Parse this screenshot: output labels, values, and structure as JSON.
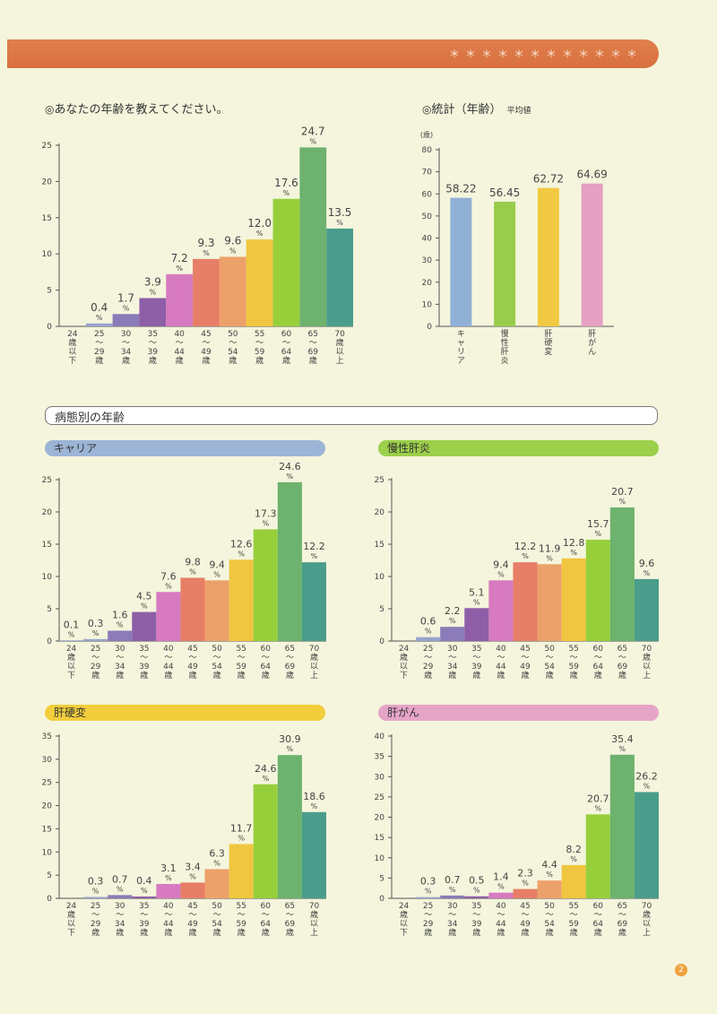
{
  "banner": {
    "stars": "＊＊＊＊＊＊＊＊＊＊＊＊"
  },
  "age_question": {
    "mark": "◎",
    "title": "あなたの年齢を教えてください。"
  },
  "stats": {
    "mark": "◎",
    "title": "統計（年齢）",
    "subtitle": "平均値"
  },
  "disease_section": {
    "title": "病態別の年齢"
  },
  "pills": {
    "carrier": "キャリア",
    "chronic": "慢性肝炎",
    "cirrhosis": "肝硬変",
    "cancer": "肝がん"
  },
  "page_number": "2",
  "colors": {
    "banner": "#dc7643",
    "pill_carrier": "#9cb4d6",
    "pill_chronic": "#9ccf4a",
    "pill_cirrhosis": "#f2ce3c",
    "pill_cancer": "#e6a5c7",
    "bars": [
      "#9aa3cf",
      "#9aa3cf",
      "#8b7bb8",
      "#8e5ea7",
      "#d77ac0",
      "#e77e67",
      "#eda16a",
      "#f0c640",
      "#97cf3b",
      "#6db26e",
      "#4a9d8b"
    ],
    "stats_bars": [
      "#91b0d6",
      "#9acc4c",
      "#f1c943",
      "#e5a0c3"
    ]
  },
  "chart_data": [
    {
      "id": "all",
      "type": "bar",
      "categories": [
        [
          "24",
          "歳",
          "以",
          "下"
        ],
        [
          "25",
          "〜",
          "29",
          "歳"
        ],
        [
          "30",
          "〜",
          "34",
          "歳"
        ],
        [
          "35",
          "〜",
          "39",
          "歳"
        ],
        [
          "40",
          "〜",
          "44",
          "歳"
        ],
        [
          "45",
          "〜",
          "49",
          "歳"
        ],
        [
          "50",
          "〜",
          "54",
          "歳"
        ],
        [
          "55",
          "〜",
          "59",
          "歳"
        ],
        [
          "60",
          "〜",
          "64",
          "歳"
        ],
        [
          "65",
          "〜",
          "69",
          "歳"
        ],
        [
          "70",
          "歳",
          "以",
          "上"
        ]
      ],
      "values": [
        null,
        0.4,
        1.7,
        3.9,
        7.2,
        9.3,
        9.6,
        12.0,
        17.6,
        24.7,
        13.5
      ],
      "labels": [
        "",
        "0.4",
        "1.7",
        "3.9",
        "7.2",
        "9.3",
        "9.6",
        "12.0",
        "17.6",
        "24.7",
        "13.5"
      ],
      "unit": "%",
      "ylim": [
        0,
        25
      ],
      "yticks": [
        0,
        5,
        10,
        15,
        20,
        25
      ]
    },
    {
      "id": "stats",
      "type": "bar",
      "categories": [
        [
          "キ",
          "ャ",
          "リ",
          "ア"
        ],
        [
          "慢",
          "性",
          "肝",
          "炎"
        ],
        [
          "肝",
          "硬",
          "変"
        ],
        [
          "肝",
          "が",
          "ん"
        ]
      ],
      "values": [
        58.22,
        56.45,
        62.72,
        64.69
      ],
      "labels": [
        "58.22",
        "56.45",
        "62.72",
        "64.69"
      ],
      "ylabel": "(歳)",
      "ylim": [
        0,
        80
      ],
      "yticks": [
        0,
        10,
        20,
        30,
        40,
        50,
        60,
        70,
        80
      ]
    },
    {
      "id": "carrier",
      "type": "bar",
      "categories": [
        [
          "24",
          "歳",
          "以",
          "下"
        ],
        [
          "25",
          "〜",
          "29",
          "歳"
        ],
        [
          "30",
          "〜",
          "34",
          "歳"
        ],
        [
          "35",
          "〜",
          "39",
          "歳"
        ],
        [
          "40",
          "〜",
          "44",
          "歳"
        ],
        [
          "45",
          "〜",
          "49",
          "歳"
        ],
        [
          "50",
          "〜",
          "54",
          "歳"
        ],
        [
          "55",
          "〜",
          "59",
          "歳"
        ],
        [
          "60",
          "〜",
          "64",
          "歳"
        ],
        [
          "65",
          "〜",
          "69",
          "歳"
        ],
        [
          "70",
          "歳",
          "以",
          "上"
        ]
      ],
      "values": [
        0.1,
        0.3,
        1.6,
        4.5,
        7.6,
        9.8,
        9.4,
        12.6,
        17.3,
        24.6,
        12.2
      ],
      "labels": [
        "0.1",
        "0.3",
        "1.6",
        "4.5",
        "7.6",
        "9.8",
        "9.4",
        "12.6",
        "17.3",
        "24.6",
        "12.2"
      ],
      "unit": "%",
      "ylim": [
        0,
        25
      ],
      "yticks": [
        0,
        5,
        10,
        15,
        20,
        25
      ]
    },
    {
      "id": "chronic",
      "type": "bar",
      "categories": [
        [
          "24",
          "歳",
          "以",
          "下"
        ],
        [
          "25",
          "〜",
          "29",
          "歳"
        ],
        [
          "30",
          "〜",
          "34",
          "歳"
        ],
        [
          "35",
          "〜",
          "39",
          "歳"
        ],
        [
          "40",
          "〜",
          "44",
          "歳"
        ],
        [
          "45",
          "〜",
          "49",
          "歳"
        ],
        [
          "50",
          "〜",
          "54",
          "歳"
        ],
        [
          "55",
          "〜",
          "59",
          "歳"
        ],
        [
          "60",
          "〜",
          "64",
          "歳"
        ],
        [
          "65",
          "〜",
          "69",
          "歳"
        ],
        [
          "70",
          "歳",
          "以",
          "上"
        ]
      ],
      "values": [
        null,
        0.6,
        2.2,
        5.1,
        9.4,
        12.2,
        11.9,
        12.8,
        15.7,
        20.7,
        9.6
      ],
      "labels": [
        "",
        "0.6",
        "2.2",
        "5.1",
        "9.4",
        "12.2",
        "11.9",
        "12.8",
        "15.7",
        "20.7",
        "9.6"
      ],
      "unit": "%",
      "ylim": [
        0,
        25
      ],
      "yticks": [
        0,
        5,
        10,
        15,
        20,
        25
      ]
    },
    {
      "id": "cirrhosis",
      "type": "bar",
      "categories": [
        [
          "24",
          "歳",
          "以",
          "下"
        ],
        [
          "25",
          "〜",
          "29",
          "歳"
        ],
        [
          "30",
          "〜",
          "34",
          "歳"
        ],
        [
          "35",
          "〜",
          "39",
          "歳"
        ],
        [
          "40",
          "〜",
          "44",
          "歳"
        ],
        [
          "45",
          "〜",
          "49",
          "歳"
        ],
        [
          "50",
          "〜",
          "54",
          "歳"
        ],
        [
          "55",
          "〜",
          "59",
          "歳"
        ],
        [
          "60",
          "〜",
          "64",
          "歳"
        ],
        [
          "65",
          "〜",
          "69",
          "歳"
        ],
        [
          "70",
          "歳",
          "以",
          "上"
        ]
      ],
      "values": [
        null,
        0.3,
        0.7,
        0.4,
        3.1,
        3.4,
        6.3,
        11.7,
        24.6,
        30.9,
        18.6
      ],
      "labels": [
        "",
        "0.3",
        "0.7",
        "0.4",
        "3.1",
        "3.4",
        "6.3",
        "11.7",
        "24.6",
        "30.9",
        "18.6"
      ],
      "unit": "%",
      "ylim": [
        0,
        35
      ],
      "yticks": [
        0,
        5,
        10,
        15,
        20,
        25,
        30,
        35
      ]
    },
    {
      "id": "cancer",
      "type": "bar",
      "categories": [
        [
          "24",
          "歳",
          "以",
          "下"
        ],
        [
          "25",
          "〜",
          "29",
          "歳"
        ],
        [
          "30",
          "〜",
          "34",
          "歳"
        ],
        [
          "35",
          "〜",
          "39",
          "歳"
        ],
        [
          "40",
          "〜",
          "44",
          "歳"
        ],
        [
          "45",
          "〜",
          "49",
          "歳"
        ],
        [
          "50",
          "〜",
          "54",
          "歳"
        ],
        [
          "55",
          "〜",
          "59",
          "歳"
        ],
        [
          "60",
          "〜",
          "64",
          "歳"
        ],
        [
          "65",
          "〜",
          "69",
          "歳"
        ],
        [
          "70",
          "歳",
          "以",
          "上"
        ]
      ],
      "values": [
        null,
        0.3,
        0.7,
        0.5,
        1.4,
        2.3,
        4.4,
        8.2,
        20.7,
        35.4,
        26.2
      ],
      "labels": [
        "",
        "0.3",
        "0.7",
        "0.5",
        "1.4",
        "2.3",
        "4.4",
        "8.2",
        "20.7",
        "35.4",
        "26.2"
      ],
      "unit": "%",
      "ylim": [
        0,
        40
      ],
      "yticks": [
        0,
        5,
        10,
        15,
        20,
        25,
        30,
        35,
        40
      ]
    }
  ]
}
